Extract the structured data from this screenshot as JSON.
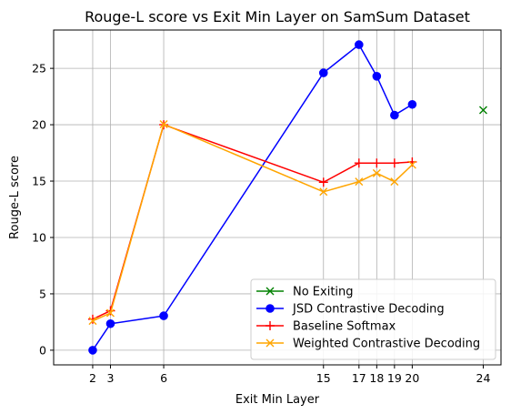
{
  "chart_data": {
    "type": "line",
    "title": "Rouge-L score vs Exit Min Layer on SamSum Dataset",
    "xlabel": "Exit Min Layer",
    "ylabel": "Rouge-L score",
    "xlim": [
      -0.2,
      25.0
    ],
    "ylim": [
      -1.3,
      28.4
    ],
    "xticks": [
      2,
      3,
      6,
      15,
      17,
      18,
      19,
      20,
      24
    ],
    "yticks": [
      0,
      5,
      10,
      15,
      20,
      25
    ],
    "grid": true,
    "legend_position": "lower-right",
    "series": [
      {
        "name": "No Exiting",
        "color": "#008000",
        "marker": "x",
        "line": false,
        "x": [
          24
        ],
        "y": [
          21.3
        ]
      },
      {
        "name": "JSD Contrastive Decoding",
        "color": "#0000ff",
        "marker": "o",
        "line": true,
        "x": [
          2,
          3,
          6,
          15,
          17,
          18,
          19,
          20
        ],
        "y": [
          0.0,
          2.35,
          3.05,
          24.6,
          27.1,
          24.3,
          20.85,
          21.8
        ]
      },
      {
        "name": "Baseline Softmax",
        "color": "#ff0000",
        "marker": "+",
        "line": true,
        "x": [
          2,
          3,
          6,
          15,
          17,
          18,
          19,
          20
        ],
        "y": [
          2.75,
          3.5,
          20.0,
          14.9,
          16.6,
          16.6,
          16.6,
          16.7
        ]
      },
      {
        "name": "Weighted Contrastive Decoding",
        "color": "#ffa500",
        "marker": "x",
        "line": true,
        "x": [
          2,
          3,
          6,
          15,
          17,
          18,
          19,
          20
        ],
        "y": [
          2.6,
          3.3,
          20.05,
          14.05,
          14.95,
          15.7,
          14.95,
          16.45
        ]
      }
    ]
  }
}
